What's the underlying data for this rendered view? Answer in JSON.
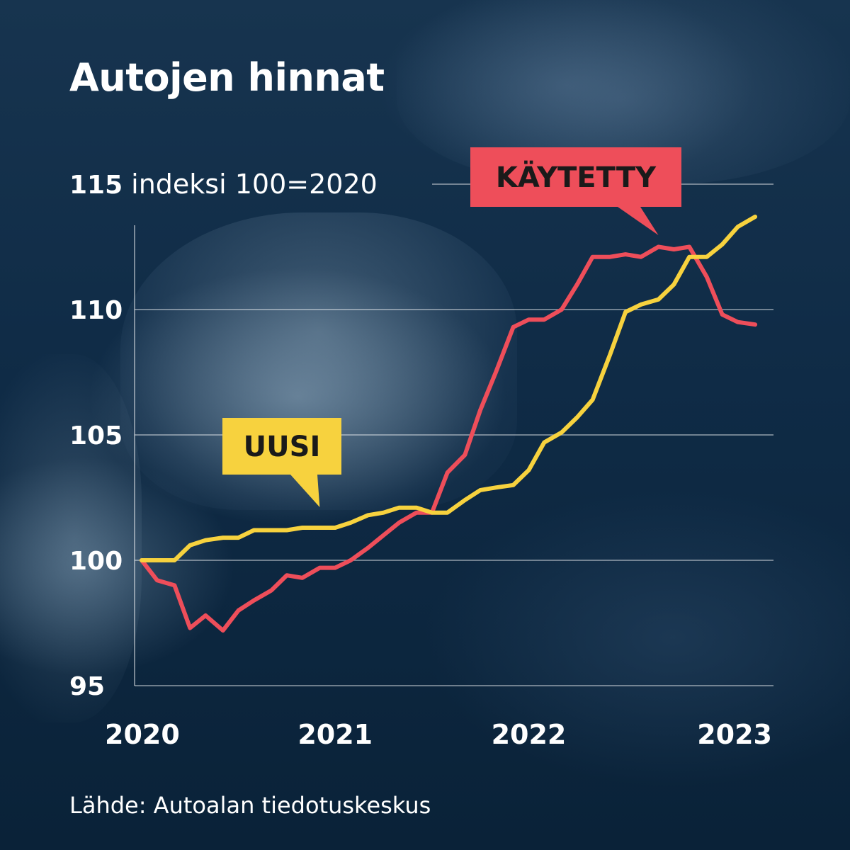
{
  "title": "Autojen hinnat",
  "source": "Lähde: Autoalan tiedotuskeskus",
  "colors": {
    "used": "#ee4e5a",
    "new": "#f7d23e",
    "grid": "#ffffff",
    "text": "#ffffff",
    "callout_text": "#1a1a1a"
  },
  "chart_data": {
    "type": "line",
    "title": "Autojen hinnat",
    "ylabel": "indeksi 100=2020",
    "ylim": [
      95,
      115
    ],
    "yticks": [
      95,
      100,
      105,
      110,
      115
    ],
    "xlim": [
      2020.0,
      2023.25
    ],
    "xticks": [
      {
        "value": 2020,
        "label": "2020"
      },
      {
        "value": 2021,
        "label": "2021"
      },
      {
        "value": 2022,
        "label": "2022"
      },
      {
        "value": 2023,
        "label": "2023"
      }
    ],
    "grid": true,
    "series": [
      {
        "name": "KÄYTETTY",
        "color": "#ee4e5a",
        "x": [
          2020.0,
          2020.08,
          2020.17,
          2020.25,
          2020.33,
          2020.42,
          2020.5,
          2020.58,
          2020.67,
          2020.75,
          2020.83,
          2020.92,
          2021.0,
          2021.08,
          2021.17,
          2021.25,
          2021.33,
          2021.42,
          2021.5,
          2021.58,
          2021.67,
          2021.75,
          2021.83,
          2021.92,
          2022.0,
          2022.08,
          2022.17,
          2022.25,
          2022.33,
          2022.42,
          2022.5,
          2022.58,
          2022.67,
          2022.75,
          2022.83,
          2022.92,
          2023.0,
          2023.08,
          2023.17
        ],
        "y": [
          100.0,
          99.2,
          99.0,
          97.3,
          97.8,
          97.2,
          98.0,
          98.4,
          98.8,
          99.4,
          99.3,
          99.7,
          99.7,
          100.0,
          100.5,
          101.0,
          101.5,
          101.9,
          101.9,
          103.5,
          104.2,
          106.0,
          107.5,
          109.3,
          109.6,
          109.6,
          110.0,
          111.0,
          112.1,
          112.1,
          112.2,
          112.1,
          112.5,
          112.4,
          112.5,
          111.3,
          109.8,
          109.5,
          109.4
        ]
      },
      {
        "name": "UUSI",
        "color": "#f7d23e",
        "x": [
          2020.0,
          2020.08,
          2020.17,
          2020.25,
          2020.33,
          2020.42,
          2020.5,
          2020.58,
          2020.67,
          2020.75,
          2020.83,
          2020.92,
          2021.0,
          2021.08,
          2021.17,
          2021.25,
          2021.33,
          2021.42,
          2021.5,
          2021.58,
          2021.67,
          2021.75,
          2021.83,
          2021.92,
          2022.0,
          2022.08,
          2022.17,
          2022.25,
          2022.33,
          2022.42,
          2022.5,
          2022.58,
          2022.67,
          2022.75,
          2022.83,
          2022.92,
          2023.0,
          2023.08,
          2023.17
        ],
        "y": [
          100.0,
          100.0,
          100.0,
          100.6,
          100.8,
          100.9,
          100.9,
          101.2,
          101.2,
          101.2,
          101.3,
          101.3,
          101.3,
          101.5,
          101.8,
          101.9,
          102.1,
          102.1,
          101.9,
          101.9,
          102.4,
          102.8,
          102.9,
          103.0,
          103.6,
          104.7,
          105.1,
          105.7,
          106.4,
          108.2,
          109.9,
          110.2,
          110.4,
          111.0,
          112.1,
          112.1,
          112.6,
          113.3,
          113.7
        ]
      }
    ],
    "annotations": [
      {
        "text": "KÄYTETTY",
        "series": "KÄYTETTY",
        "pointer_x": 2022.67
      },
      {
        "text": "UUSI",
        "series": "UUSI",
        "pointer_x": 2020.92
      }
    ]
  }
}
